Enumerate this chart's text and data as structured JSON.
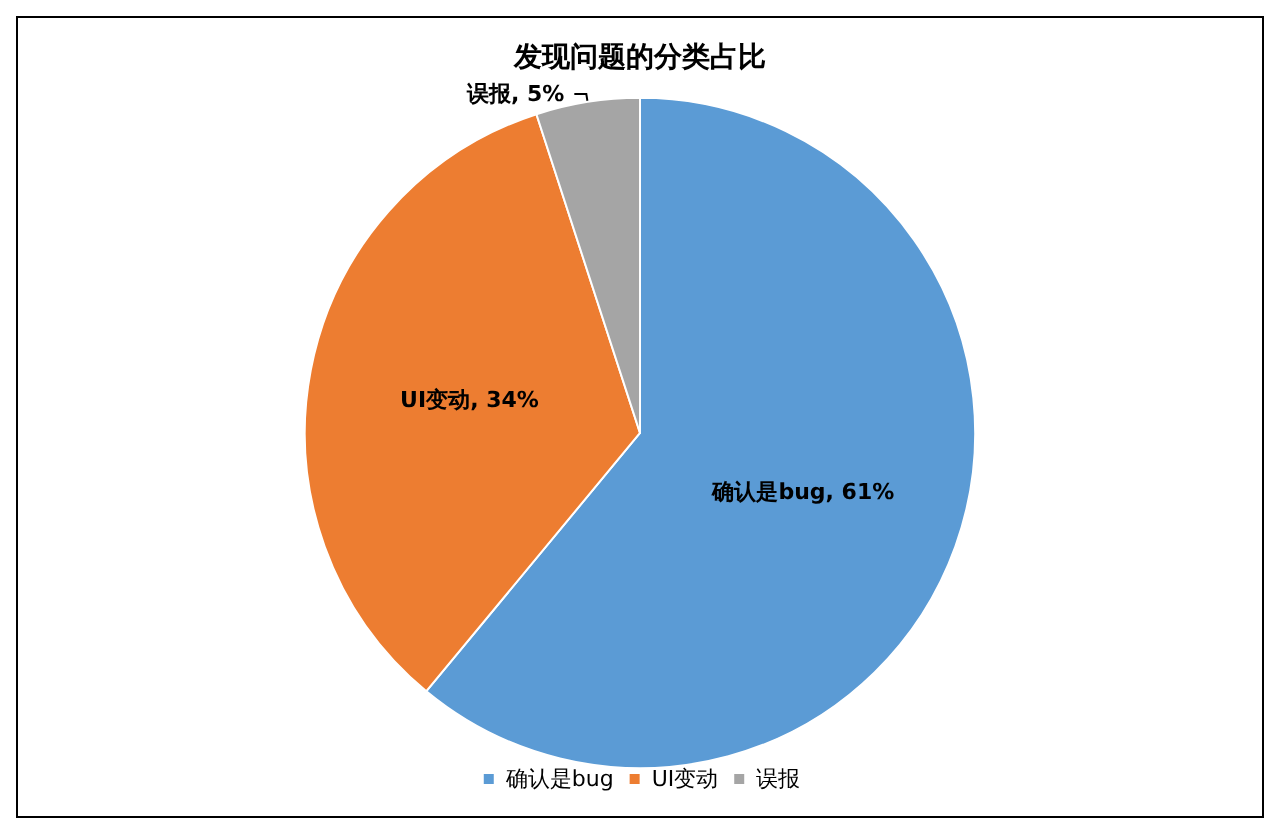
{
  "chart_data": {
    "type": "pie",
    "title": "发现问题的分类占比",
    "categories": [
      "确认是bug",
      "UI变动",
      "误报"
    ],
    "values": [
      61,
      34,
      5
    ],
    "colors": [
      "#5b9bd5",
      "#ed7d31",
      "#a5a5a5"
    ],
    "value_labels": [
      "确认是bug, 61%",
      "UI变动, 34%",
      "误报, 5%"
    ],
    "legend": "bottom"
  }
}
